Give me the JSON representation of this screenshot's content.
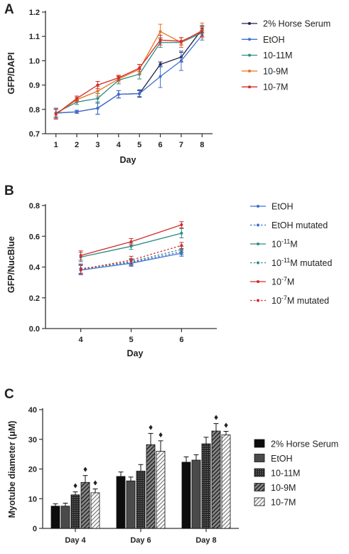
{
  "colors": {
    "horse": "#1f1f4f",
    "etoh": "#3f6fd0",
    "m11": "#2e8b84",
    "m9": "#e8721f",
    "m7": "#d42a2a",
    "marker": "#111111",
    "axis": "#333333"
  },
  "chart_data": [
    {
      "panel": "A",
      "type": "line",
      "title": "",
      "xlabel": "Day",
      "ylabel": "GFP/DAPI",
      "x": [
        1,
        2,
        3,
        4,
        5,
        6,
        7,
        8
      ],
      "xlim": [
        0.5,
        8.5
      ],
      "ylim": [
        0.7,
        1.2
      ],
      "yticks": [
        0.7,
        0.8,
        0.9,
        1.0,
        1.1,
        1.2
      ],
      "ytick_labels": [
        "0.7",
        "0.8",
        "0.9",
        "1.0",
        "1.1",
        "1.2"
      ],
      "xtick_labels": [
        "1",
        "2",
        "3",
        "4",
        "5",
        "6",
        "7",
        "8"
      ],
      "grid": false,
      "legend_position": "right",
      "series": [
        {
          "name": "2% Horse Serum",
          "color_key": "horse",
          "values": [
            0.785,
            0.79,
            0.805,
            0.862,
            0.865,
            0.985,
            1.015,
            1.13
          ],
          "errors": [
            0.02,
            0.006,
            0.025,
            0.015,
            0.015,
            0.01,
            0.02,
            0.015
          ]
        },
        {
          "name": "EtOH",
          "color_key": "etoh",
          "values": [
            0.785,
            0.79,
            0.805,
            0.862,
            0.865,
            0.935,
            1.0,
            1.105
          ],
          "errors": [
            0.02,
            0.006,
            0.025,
            0.015,
            0.012,
            0.045,
            0.04,
            0.02
          ]
        },
        {
          "name": "10-11M",
          "color_key": "m11",
          "values": [
            0.785,
            0.83,
            0.845,
            0.92,
            0.945,
            1.075,
            1.075,
            1.115
          ],
          "errors": [
            0.015,
            0.01,
            0.02,
            0.015,
            0.02,
            0.02,
            0.02,
            0.02
          ]
        },
        {
          "name": "10-9M",
          "color_key": "m9",
          "values": [
            0.78,
            0.84,
            0.875,
            0.925,
            0.965,
            1.12,
            1.075,
            1.125
          ],
          "errors": [
            0.02,
            0.01,
            0.02,
            0.012,
            0.02,
            0.03,
            0.02,
            0.03
          ]
        },
        {
          "name": "10-7M",
          "color_key": "m7",
          "values": [
            0.78,
            0.845,
            0.9,
            0.93,
            0.97,
            1.085,
            1.08,
            1.12
          ],
          "errors": [
            0.02,
            0.01,
            0.015,
            0.01,
            0.015,
            0.02,
            0.015,
            0.02
          ]
        }
      ]
    },
    {
      "panel": "B",
      "type": "line",
      "title": "",
      "xlabel": "Day",
      "ylabel": "GFP/NucBlue",
      "x": [
        4,
        5,
        6
      ],
      "xlim": [
        3.3,
        6.7
      ],
      "ylim": [
        0.0,
        0.8
      ],
      "yticks": [
        0.0,
        0.2,
        0.4,
        0.6,
        0.8
      ],
      "ytick_labels": [
        "0.0",
        "0.2",
        "0.4",
        "0.6",
        "0.8"
      ],
      "xtick_labels": [
        "4",
        "5",
        "6"
      ],
      "grid": false,
      "legend_position": "right",
      "series": [
        {
          "name": "EtOH",
          "color_key": "etoh",
          "dashed": false,
          "values": [
            0.38,
            0.425,
            0.49
          ],
          "errors": [
            0.03,
            0.02,
            0.02
          ]
        },
        {
          "name": "EtOH mutated",
          "color_key": "etoh",
          "dashed": true,
          "values": [
            0.39,
            0.43,
            0.5
          ],
          "errors": [
            0.03,
            0.02,
            0.02
          ]
        },
        {
          "name": "10",
          "sup": "-11",
          "name_suffix": "M",
          "color_key": "m11",
          "dashed": false,
          "values": [
            0.465,
            0.535,
            0.62
          ],
          "errors": [
            0.03,
            0.02,
            0.03
          ]
        },
        {
          "name": "10",
          "sup": "-11",
          "name_suffix": "M mutated",
          "color_key": "m11",
          "dashed": true,
          "values": [
            0.385,
            0.435,
            0.515
          ],
          "errors": [
            0.03,
            0.02,
            0.02
          ]
        },
        {
          "name": "10",
          "sup": "-7",
          "name_suffix": "M",
          "color_key": "m7",
          "dashed": false,
          "values": [
            0.475,
            0.565,
            0.675
          ],
          "errors": [
            0.03,
            0.02,
            0.02
          ]
        },
        {
          "name": "10",
          "sup": "-7",
          "name_suffix": "M mutated",
          "color_key": "m7",
          "dashed": true,
          "values": [
            0.385,
            0.445,
            0.54
          ],
          "errors": [
            0.03,
            0.025,
            0.02
          ]
        }
      ]
    },
    {
      "panel": "C",
      "type": "bar",
      "title": "",
      "xlabel": "",
      "ylabel": "Myotube diameter (μM)",
      "categories": [
        "Day 4",
        "Day 6",
        "Day 8"
      ],
      "ylim": [
        0,
        40
      ],
      "yticks": [
        0,
        10,
        20,
        30,
        40
      ],
      "ytick_labels": [
        "0",
        "10",
        "20",
        "30",
        "40"
      ],
      "grid": false,
      "legend_position": "right",
      "significance_marker": "♦",
      "series": [
        {
          "name": "2% Horse Serum",
          "fill": "solid-black",
          "values": [
            7.5,
            17.5,
            22.3
          ],
          "errors": [
            0.8,
            1.5,
            1.8
          ],
          "significant": [
            false,
            false,
            false
          ]
        },
        {
          "name": "EtOH",
          "fill": "solid-dark-gray",
          "values": [
            7.5,
            16.0,
            23.0
          ],
          "errors": [
            1.0,
            1.3,
            1.8
          ],
          "significant": [
            false,
            false,
            false
          ]
        },
        {
          "name": "10-11M",
          "fill": "dark-speckle",
          "values": [
            11.3,
            19.3,
            28.5
          ],
          "errors": [
            1.0,
            2.2,
            2.2
          ],
          "significant": [
            true,
            false,
            false
          ]
        },
        {
          "name": "10-9M",
          "fill": "hatch-gray",
          "values": [
            15.5,
            28.2,
            32.8
          ],
          "errors": [
            2.3,
            3.8,
            2.5
          ],
          "significant": [
            true,
            true,
            true
          ]
        },
        {
          "name": "10-7M",
          "fill": "hatch-light",
          "values": [
            12.0,
            26.0,
            31.5
          ],
          "errors": [
            1.3,
            3.5,
            1.2
          ],
          "significant": [
            true,
            true,
            true
          ]
        }
      ]
    }
  ]
}
